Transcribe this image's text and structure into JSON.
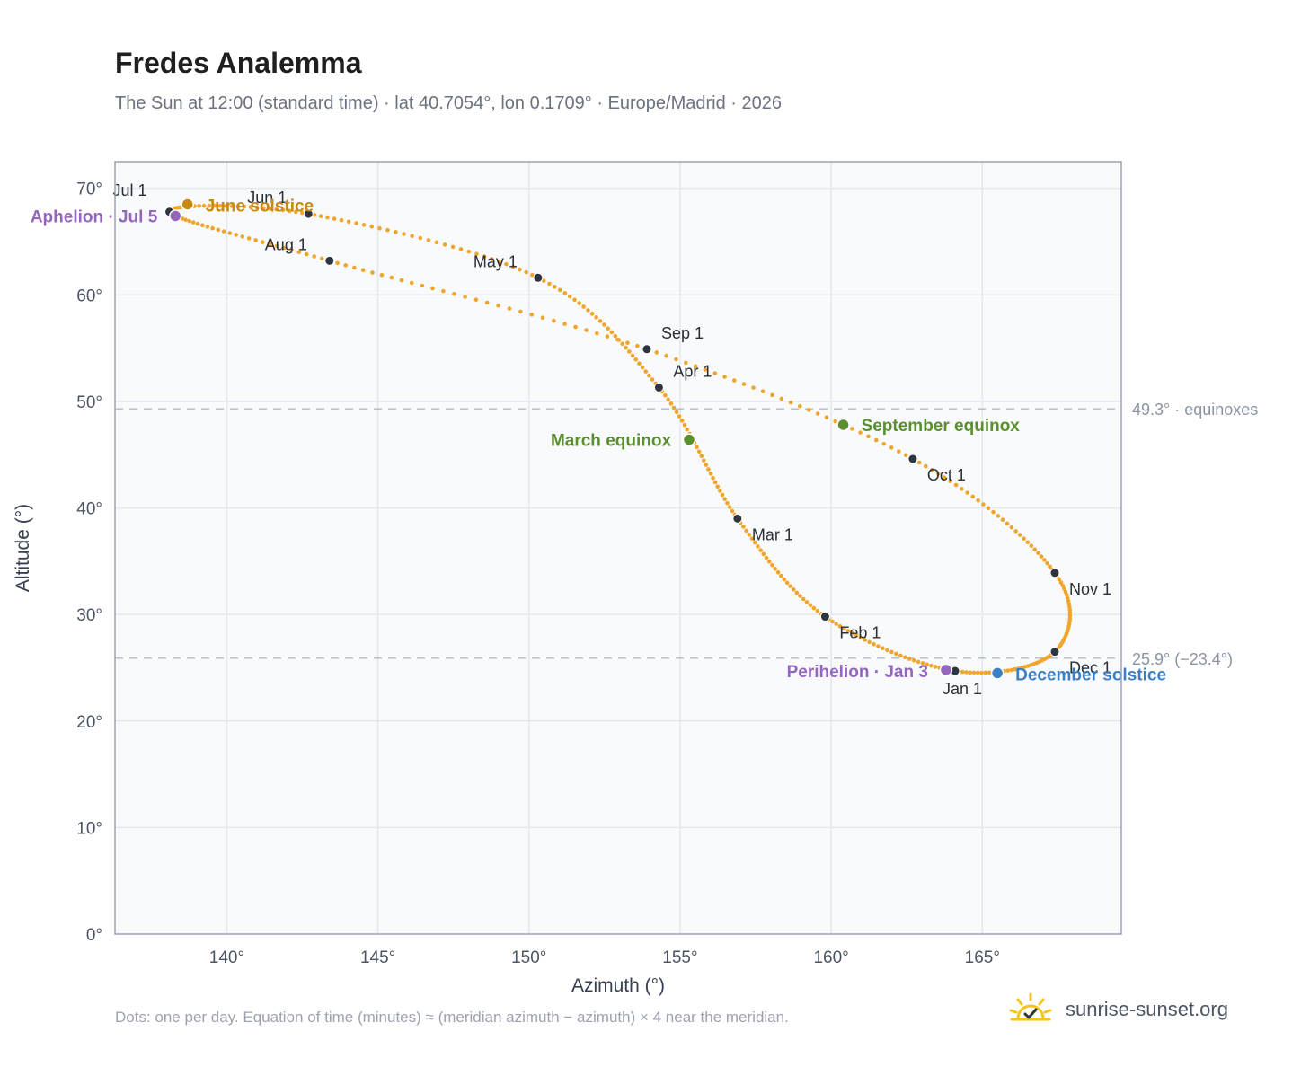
{
  "title": "Fredes Analemma",
  "subtitle": "The Sun at 12:00 (standard time) · lat 40.7054°, lon 0.1709° · Europe/Madrid · 2026",
  "footnote": "Dots: one per day. Equation of time (minutes) ≈ (meridian azimuth − azimuth) × 4 near the meridian.",
  "brand": {
    "name": "sunrise-sunset.org",
    "icon": "sun-check-icon"
  },
  "chart_data": {
    "type": "scatter",
    "xlabel": "Azimuth (°)",
    "ylabel": "Altitude (°)",
    "xlim": [
      136.3,
      169.6
    ],
    "ylim": [
      0,
      72.5
    ],
    "xticks": [
      140,
      145,
      150,
      155,
      160,
      165
    ],
    "xtick_labels": [
      "140°",
      "145°",
      "150°",
      "155°",
      "160°",
      "165°"
    ],
    "yticks": [
      0,
      10,
      20,
      30,
      40,
      50,
      60,
      70
    ],
    "ytick_labels": [
      "0°",
      "10°",
      "20°",
      "30°",
      "40°",
      "50°",
      "60°",
      "70°"
    ],
    "grid": true,
    "colors": {
      "path": "#f0a52c",
      "month": "#2e3440",
      "solstice_june": "#c98a14",
      "solstice_december": "#3d7fc4",
      "equinox": "#5a8f2e",
      "apsis": "#9467bd",
      "reference": "#b8c0cc",
      "plot_bg": "#f8fafc",
      "frame": "#9aa4b2"
    },
    "reference_lines": [
      {
        "y": 49.3,
        "label": "49.3° · equinoxes"
      },
      {
        "y": 25.9,
        "label": "25.9° (−23.4°)"
      }
    ],
    "months": [
      {
        "label": "Jan 1",
        "az": 164.1,
        "alt": 24.7
      },
      {
        "label": "Feb 1",
        "az": 159.8,
        "alt": 29.8
      },
      {
        "label": "Mar 1",
        "az": 156.9,
        "alt": 39.0
      },
      {
        "label": "Apr 1",
        "az": 154.3,
        "alt": 51.3
      },
      {
        "label": "May 1",
        "az": 150.3,
        "alt": 61.6
      },
      {
        "label": "Jun 1",
        "az": 142.7,
        "alt": 67.6
      },
      {
        "label": "Jul 1",
        "az": 138.1,
        "alt": 67.8
      },
      {
        "label": "Aug 1",
        "az": 143.4,
        "alt": 63.2
      },
      {
        "label": "Sep 1",
        "az": 153.9,
        "alt": 54.9
      },
      {
        "label": "Oct 1",
        "az": 162.7,
        "alt": 44.6
      },
      {
        "label": "Nov 1",
        "az": 167.4,
        "alt": 33.9
      },
      {
        "label": "Dec 1",
        "az": 167.4,
        "alt": 26.5
      }
    ],
    "events": [
      {
        "label": "June solstice",
        "az": 138.7,
        "alt": 68.5,
        "kind": "solstice_june"
      },
      {
        "label": "December solstice",
        "az": 165.5,
        "alt": 24.5,
        "kind": "solstice_december"
      },
      {
        "label": "March equinox",
        "az": 155.3,
        "alt": 46.4,
        "kind": "equinox"
      },
      {
        "label": "September equinox",
        "az": 160.4,
        "alt": 47.8,
        "kind": "equinox"
      },
      {
        "label": "Aphelion · Jul 5",
        "az": 138.3,
        "alt": 67.4,
        "kind": "apsis"
      },
      {
        "label": "Perihelion · Jan 3",
        "az": 163.8,
        "alt": 24.8,
        "kind": "apsis"
      }
    ]
  }
}
